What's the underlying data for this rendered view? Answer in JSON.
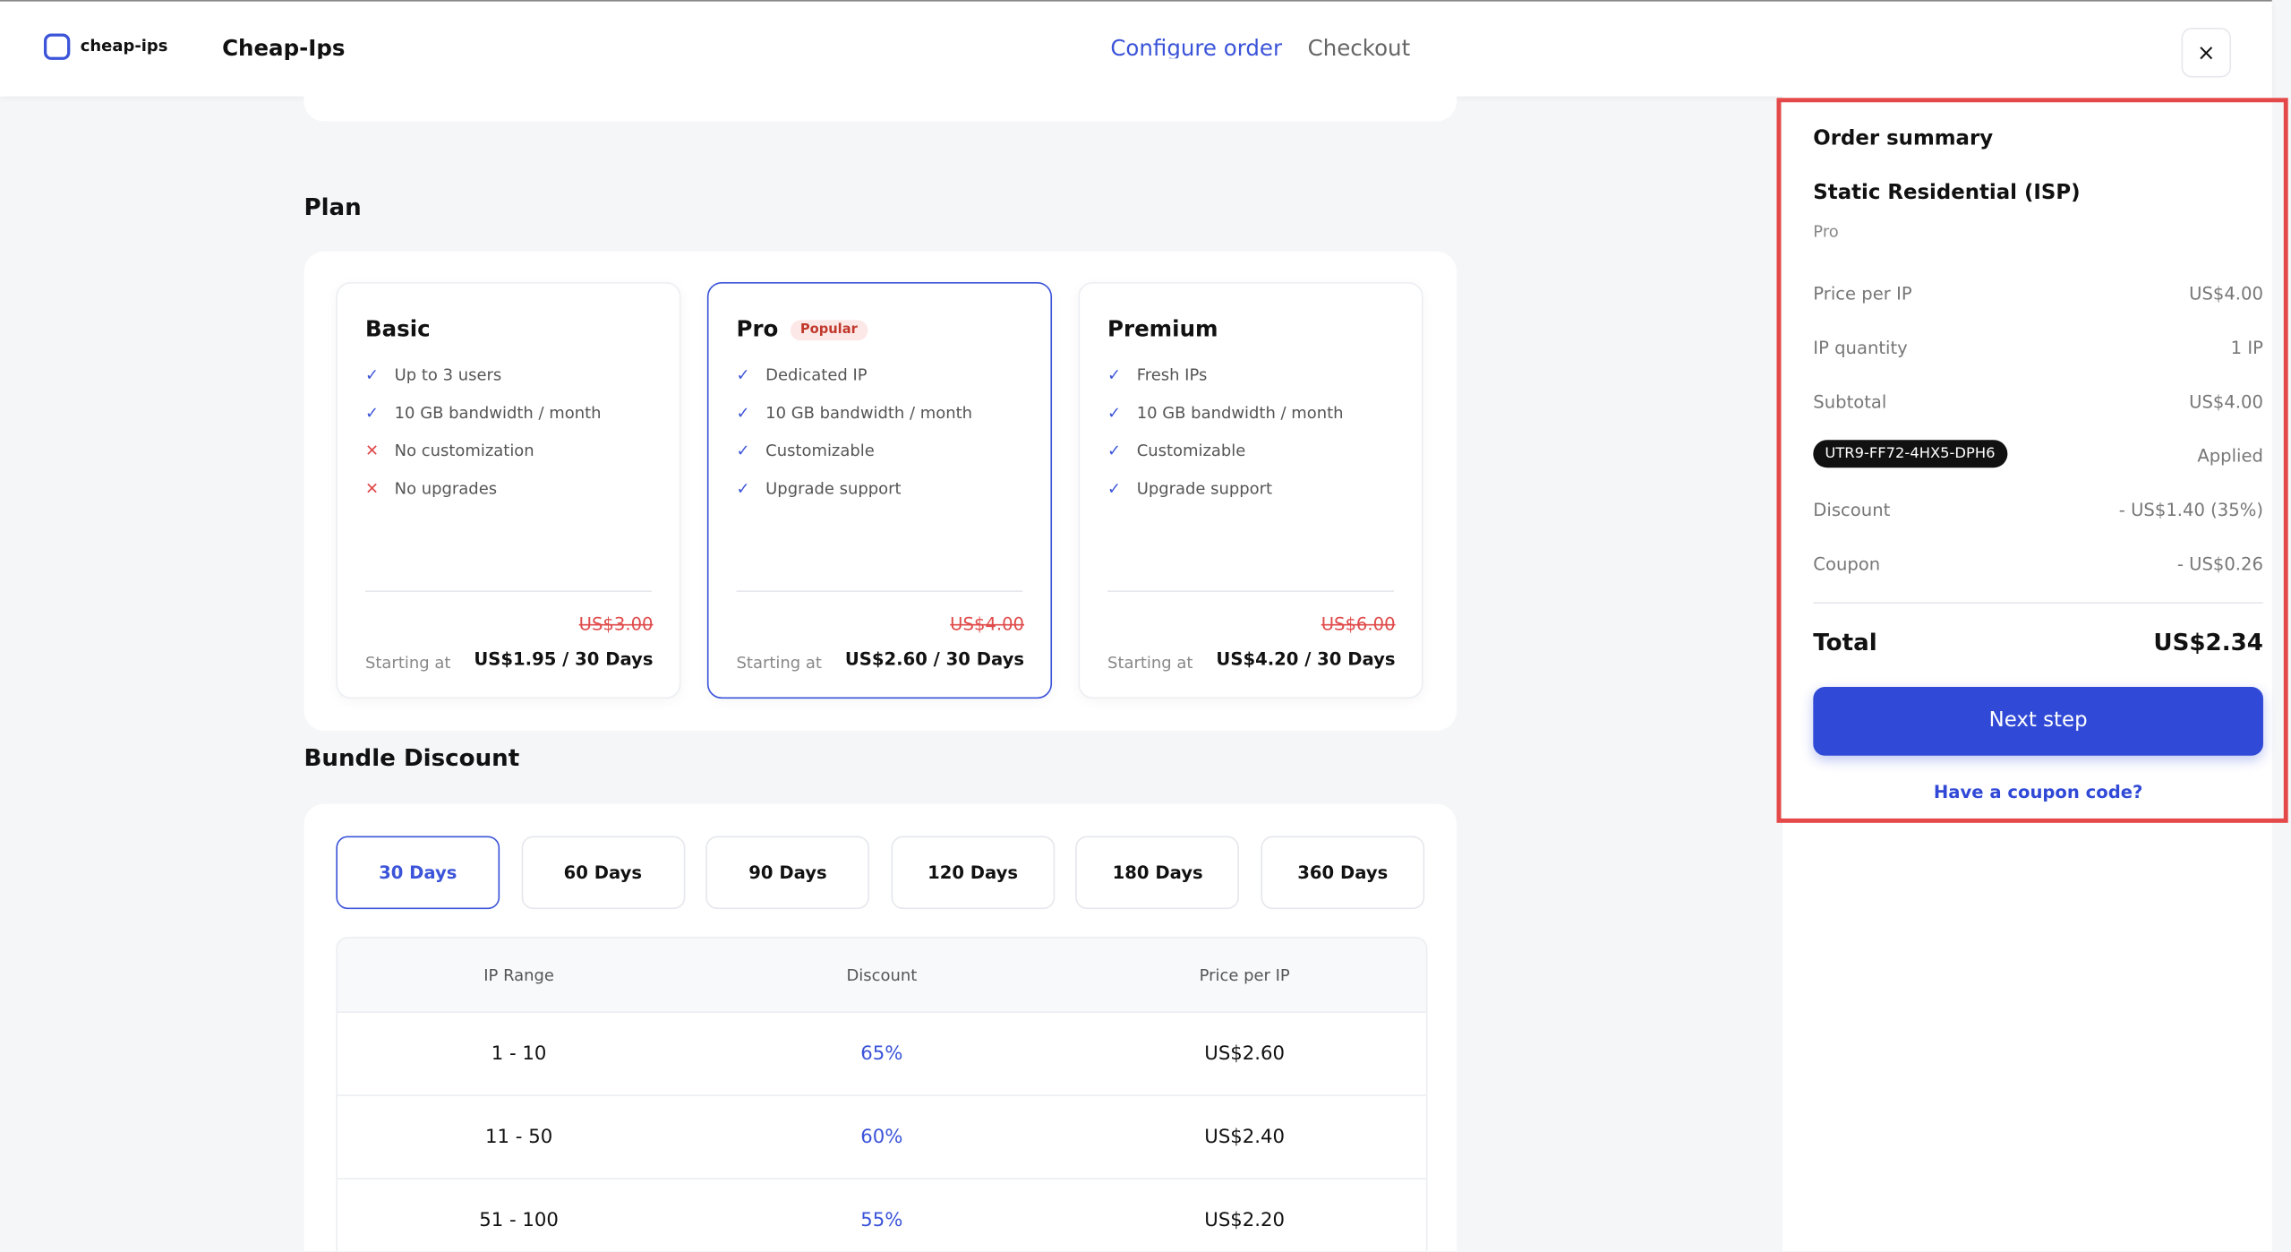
{
  "header": {
    "logo_text": "cheap-ips",
    "site_name": "Cheap-Ips",
    "tabs": [
      "Configure order",
      "Checkout"
    ],
    "close": "×"
  },
  "plan": {
    "heading": "Plan",
    "plans": [
      {
        "name": "Basic",
        "features": [
          {
            "text": "Up to 3 users",
            "included": true
          },
          {
            "text": "10 GB bandwidth / month",
            "included": true
          },
          {
            "text": "No customization",
            "included": false
          },
          {
            "text": "No upgrades",
            "included": false
          }
        ],
        "old_price": "US$3.00",
        "starting_label": "Starting at",
        "price": "US$1.95 / 30 Days"
      },
      {
        "name": "Pro",
        "badge": "Popular",
        "selected": true,
        "features": [
          {
            "text": "Dedicated IP",
            "included": true
          },
          {
            "text": "10 GB bandwidth / month",
            "included": true
          },
          {
            "text": "Customizable",
            "included": true
          },
          {
            "text": "Upgrade support",
            "included": true
          }
        ],
        "old_price": "US$4.00",
        "starting_label": "Starting at",
        "price": "US$2.60 / 30 Days"
      },
      {
        "name": "Premium",
        "features": [
          {
            "text": "Fresh IPs",
            "included": true
          },
          {
            "text": "10 GB bandwidth / month",
            "included": true
          },
          {
            "text": "Customizable",
            "included": true
          },
          {
            "text": "Upgrade support",
            "included": true
          }
        ],
        "old_price": "US$6.00",
        "starting_label": "Starting at",
        "price": "US$4.20 / 30 Days"
      }
    ]
  },
  "bundle": {
    "heading": "Bundle Discount",
    "options": [
      "30 Days",
      "60 Days",
      "90 Days",
      "120 Days",
      "180 Days",
      "360 Days"
    ],
    "selected": 0,
    "table": {
      "headers": [
        "IP Range",
        "Discount",
        "Price per IP"
      ],
      "rows": [
        [
          "1 - 10",
          "65%",
          "US$2.60"
        ],
        [
          "11 - 50",
          "60%",
          "US$2.40"
        ],
        [
          "51 - 100",
          "55%",
          "US$2.20"
        ]
      ]
    }
  },
  "summary": {
    "title": "Order summary",
    "product": "Static Residential (ISP)",
    "tier": "Pro",
    "lines": [
      {
        "label": "Price per IP",
        "value": "US$4.00"
      },
      {
        "label": "IP quantity",
        "value": "1 IP"
      },
      {
        "label": "Subtotal",
        "value": "US$4.00"
      }
    ],
    "coupon_code": "UTR9-FF72-4HX5-DPH6",
    "coupon_status": "Applied",
    "adjustments": [
      {
        "label": "Discount",
        "value": "- US$1.40 (35%)"
      },
      {
        "label": "Coupon",
        "value": "- US$0.26"
      }
    ],
    "total_label": "Total",
    "total": "US$2.34",
    "button": "Next step",
    "link": "Have a coupon code?"
  }
}
